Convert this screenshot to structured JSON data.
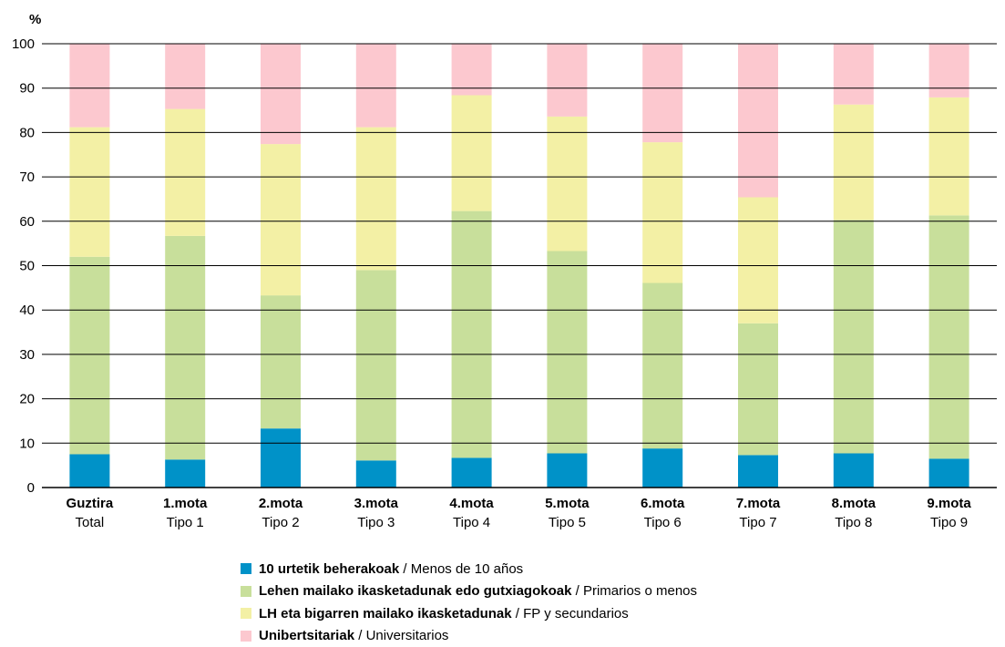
{
  "chart_data": {
    "type": "bar",
    "stacked": true,
    "y_unit_label": "%",
    "ylim": [
      0,
      100
    ],
    "yticks": [
      0,
      10,
      20,
      30,
      40,
      50,
      60,
      70,
      80,
      90,
      100
    ],
    "grid": true,
    "legend_position": "bottom",
    "categories": [
      {
        "eu": "Guztira",
        "es": "Total"
      },
      {
        "eu": "1.mota",
        "es": "Tipo 1"
      },
      {
        "eu": "2.mota",
        "es": "Tipo 2"
      },
      {
        "eu": "3.mota",
        "es": "Tipo 3"
      },
      {
        "eu": "4.mota",
        "es": "Tipo 4"
      },
      {
        "eu": "5.mota",
        "es": "Tipo 5"
      },
      {
        "eu": "6.mota",
        "es": "Tipo 6"
      },
      {
        "eu": "7.mota",
        "es": "Tipo 7"
      },
      {
        "eu": "8.mota",
        "es": "Tipo 8"
      },
      {
        "eu": "9.mota",
        "es": "Tipo 9"
      }
    ],
    "series": [
      {
        "name_eu": "10 urtetik beherakoak",
        "name_es": "Menos de 10 años",
        "color": "#0092c8",
        "values": [
          7.5,
          6.3,
          13.3,
          6.1,
          6.7,
          7.7,
          8.8,
          7.3,
          7.7,
          6.5
        ]
      },
      {
        "name_eu": "Lehen mailako ikasketadunak edo gutxiagokoak",
        "name_es": "Primarios o menos",
        "color": "#c8df9b",
        "values": [
          44.5,
          50.4,
          30.0,
          42.9,
          55.6,
          45.6,
          37.3,
          29.7,
          52.6,
          54.8
        ]
      },
      {
        "name_eu": "LH eta bigarren mailako ikasketadunak",
        "name_es": "FP y secundarios",
        "color": "#f3f0a5",
        "values": [
          29.2,
          28.6,
          34.1,
          32.2,
          26.1,
          30.3,
          31.7,
          28.4,
          26.0,
          26.6
        ]
      },
      {
        "name_eu": "Unibertsitariak",
        "name_es": "Universitarios",
        "color": "#fcc8cf",
        "values": [
          18.8,
          14.7,
          22.6,
          18.8,
          11.6,
          16.4,
          22.2,
          34.6,
          13.7,
          12.1
        ]
      }
    ]
  }
}
